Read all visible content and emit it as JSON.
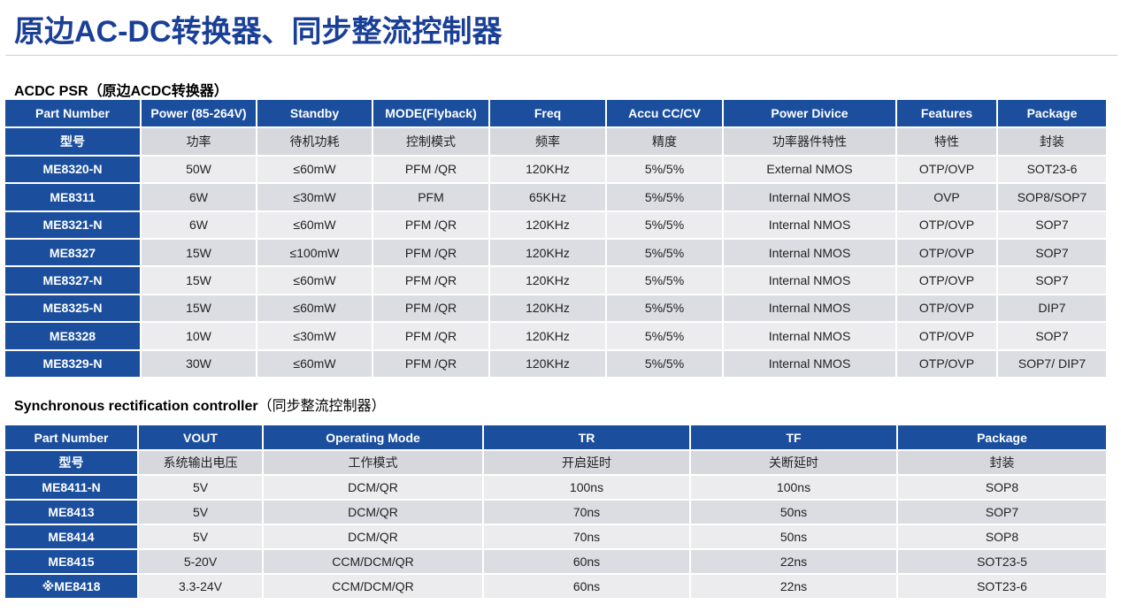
{
  "page_title": "原边AC-DC转换器、同步整流控制器",
  "section1": {
    "title_en": "ACDC PSR",
    "title_cn": "（原边ACDC转换器）"
  },
  "table1": {
    "headers": [
      "Part Number",
      "Power (85-264V)",
      "Standby",
      "MODE(Flyback)",
      "Freq",
      "Accu CC/CV",
      "Power Divice",
      "Features",
      "Package"
    ],
    "sub_headers": [
      "型号",
      "功率",
      "待机功耗",
      "控制模式",
      "频率",
      "精度",
      "功率器件特性",
      "特性",
      "封装"
    ],
    "rows": [
      [
        "ME8320-N",
        "50W",
        "≤60mW",
        "PFM /QR",
        "120KHz",
        "5%/5%",
        "External NMOS",
        "OTP/OVP",
        "SOT23-6"
      ],
      [
        "ME8311",
        "6W",
        "≤30mW",
        "PFM",
        "65KHz",
        "5%/5%",
        "Internal NMOS",
        "OVP",
        "SOP8/SOP7"
      ],
      [
        "ME8321-N",
        "6W",
        "≤60mW",
        "PFM /QR",
        "120KHz",
        "5%/5%",
        "Internal NMOS",
        "OTP/OVP",
        "SOP7"
      ],
      [
        "ME8327",
        "15W",
        "≤100mW",
        "PFM /QR",
        "120KHz",
        "5%/5%",
        "Internal NMOS",
        "OTP/OVP",
        "SOP7"
      ],
      [
        "ME8327-N",
        "15W",
        "≤60mW",
        "PFM /QR",
        "120KHz",
        "5%/5%",
        "Internal NMOS",
        "OTP/OVP",
        "SOP7"
      ],
      [
        "ME8325-N",
        "15W",
        "≤60mW",
        "PFM /QR",
        "120KHz",
        "5%/5%",
        "Internal NMOS",
        "OTP/OVP",
        "DIP7"
      ],
      [
        "ME8328",
        "10W",
        "≤30mW",
        "PFM /QR",
        "120KHz",
        "5%/5%",
        "Internal NMOS",
        "OTP/OVP",
        "SOP7"
      ],
      [
        "ME8329-N",
        "30W",
        "≤60mW",
        "PFM /QR",
        "120KHz",
        "5%/5%",
        "Internal NMOS",
        "OTP/OVP",
        "SOP7/ DIP7"
      ]
    ]
  },
  "section2": {
    "title_en": "Synchronous rectification controller",
    "title_cn": "（同步整流控制器）"
  },
  "table2": {
    "headers": [
      "Part Number",
      "VOUT",
      "Operating Mode",
      "TR",
      "TF",
      "Package"
    ],
    "sub_headers": [
      "型号",
      "系统输出电压",
      "工作模式",
      "开启延时",
      "关断延时",
      "封装"
    ],
    "rows": [
      [
        "ME8411-N",
        "5V",
        "DCM/QR",
        "100ns",
        "100ns",
        "SOP8"
      ],
      [
        "ME8413",
        "5V",
        "DCM/QR",
        "70ns",
        "50ns",
        "SOP7"
      ],
      [
        "ME8414",
        "5V",
        "DCM/QR",
        "70ns",
        "50ns",
        "SOP8"
      ],
      [
        "ME8415",
        "5-20V",
        "CCM/DCM/QR",
        "60ns",
        "22ns",
        "SOT23-5"
      ],
      [
        "※ME8418",
        "3.3-24V",
        "CCM/DCM/QR",
        "60ns",
        "22ns",
        "SOT23-6"
      ]
    ]
  },
  "colors": {
    "title": "#1a3f97",
    "header_bg": "#1b4f9e",
    "row_light": "#ececee",
    "row_dark": "#dcdde3"
  }
}
